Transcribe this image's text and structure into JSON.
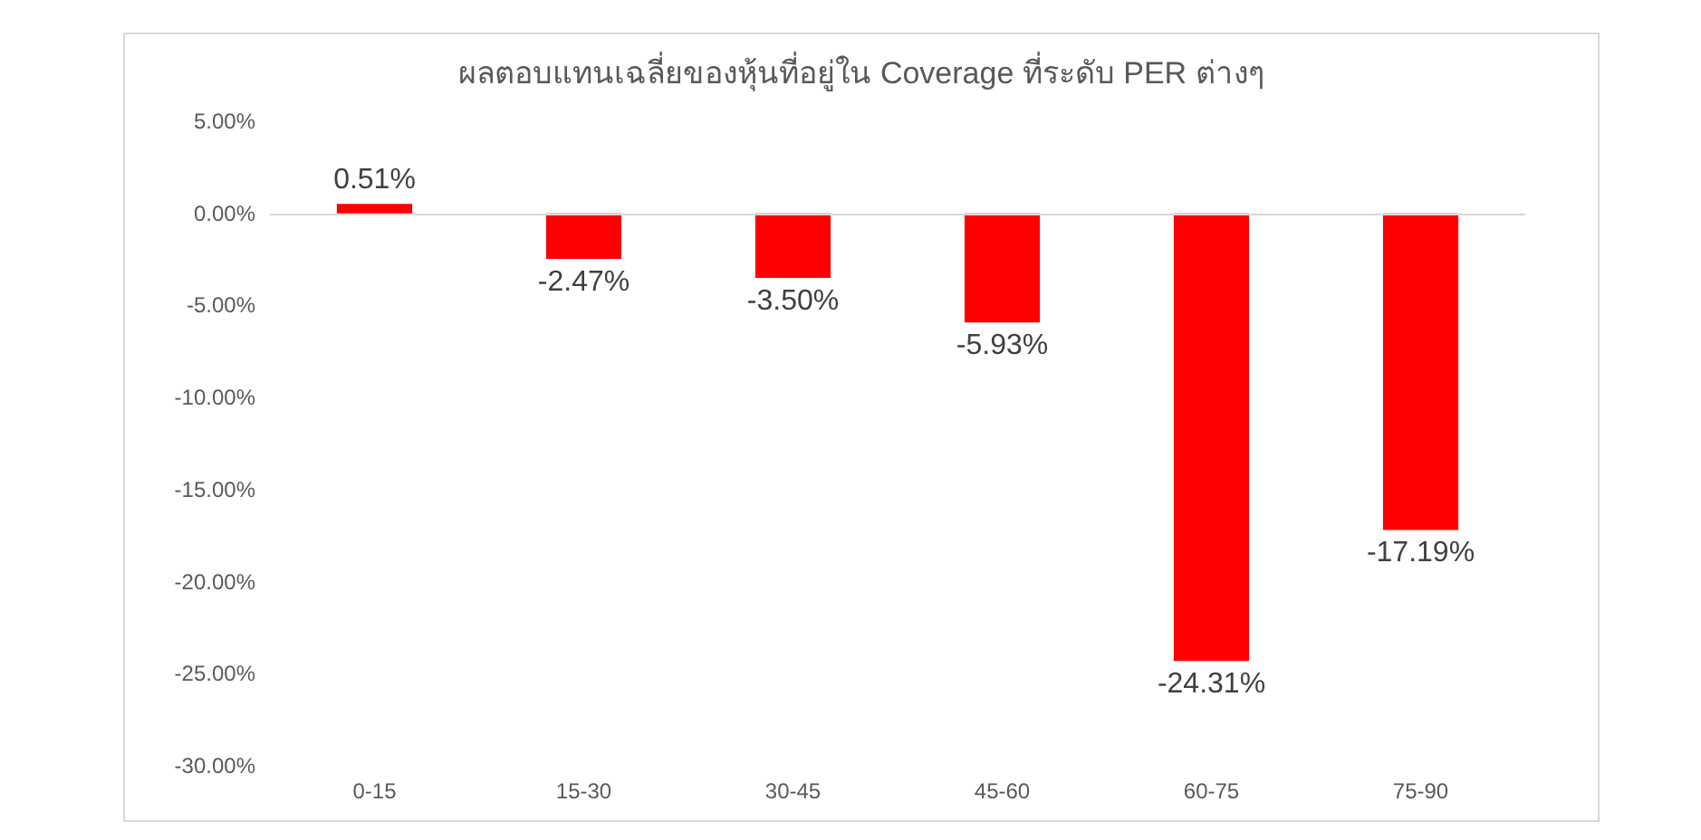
{
  "chart_data": {
    "type": "bar",
    "title": "ผลตอบแทนเฉลี่ยของหุ้นที่อยู่ใน Coverage ที่ระดับ PER ต่างๆ",
    "categories": [
      "0-15",
      "15-30",
      "30-45",
      "45-60",
      "60-75",
      "75-90"
    ],
    "values": [
      0.51,
      -2.47,
      -3.5,
      -5.93,
      -24.31,
      -17.19
    ],
    "value_labels": [
      "0.51%",
      "-2.47%",
      "-3.50%",
      "-5.93%",
      "-24.31%",
      "-17.19%"
    ],
    "color": "#ff0000",
    "ylim": [
      -30,
      5
    ],
    "yticks": [
      {
        "value": -30,
        "label": "-30.00%"
      },
      {
        "value": -25,
        "label": "-25.00%"
      },
      {
        "value": -20,
        "label": "-20.00%"
      },
      {
        "value": -15,
        "label": "-15.00%"
      },
      {
        "value": -10,
        "label": "-10.00%"
      },
      {
        "value": -5,
        "label": "-5.00%"
      },
      {
        "value": 0,
        "label": "0.00%"
      },
      {
        "value": 5,
        "label": "5.00%"
      }
    ],
    "ref_lines": [
      {
        "axis": "y",
        "value": 0,
        "color": "#d9d9d9",
        "line_style": "solid"
      }
    ],
    "grid": false
  }
}
